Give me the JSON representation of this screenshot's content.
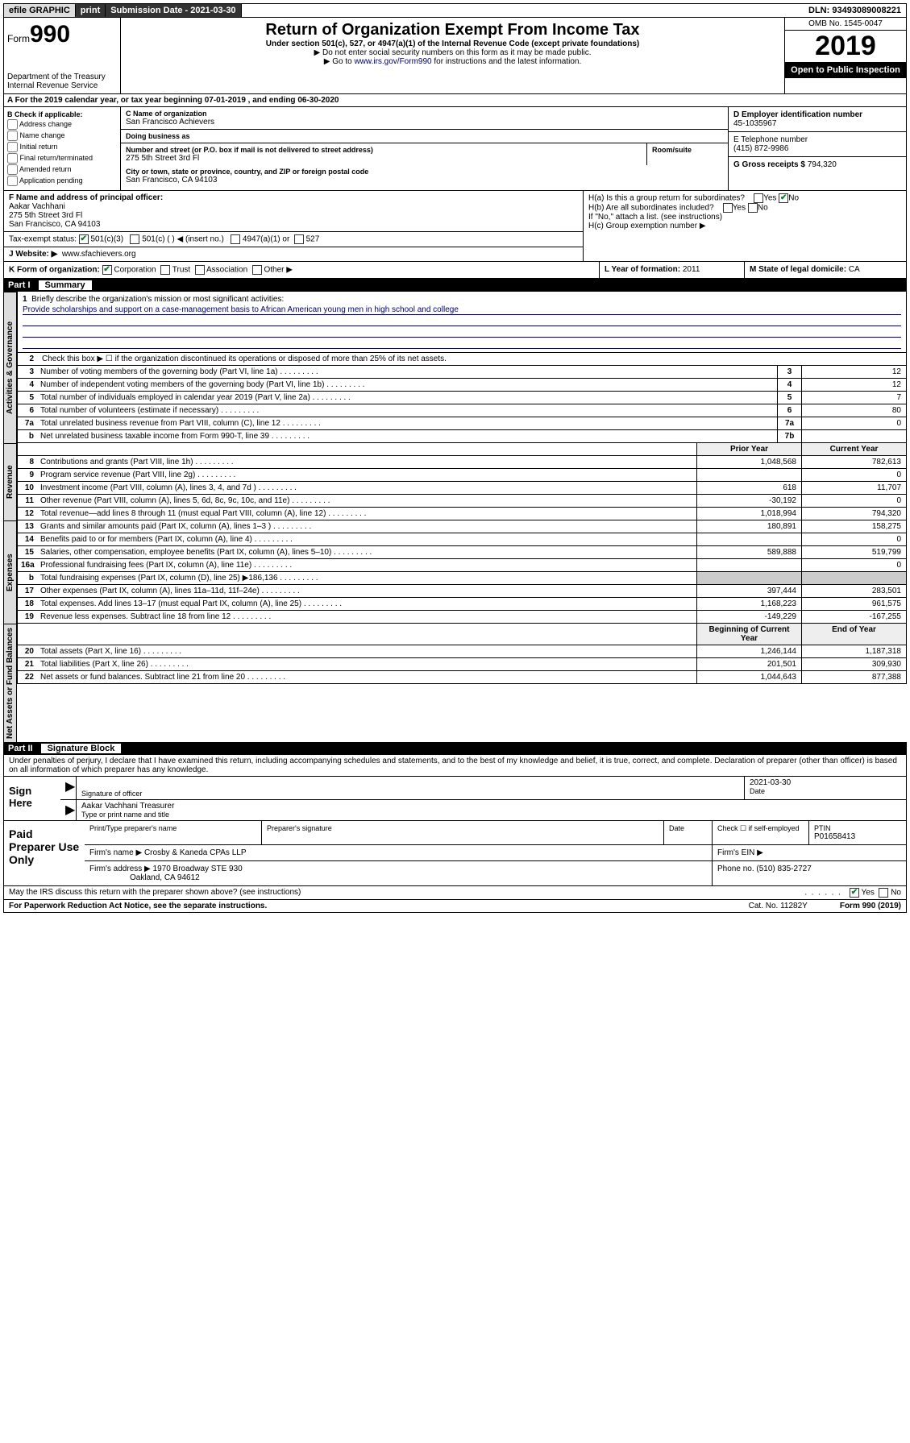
{
  "topbar": {
    "efile": "efile GRAPHIC",
    "print": "print",
    "submission_label": "Submission Date - ",
    "submission_date": "2021-03-30",
    "dln_label": "DLN: ",
    "dln": "93493089008221"
  },
  "header": {
    "form_prefix": "Form",
    "form_number": "990",
    "dept1": "Department of the Treasury",
    "dept2": "Internal Revenue Service",
    "title": "Return of Organization Exempt From Income Tax",
    "subtitle": "Under section 501(c), 527, or 4947(a)(1) of the Internal Revenue Code (except private foundations)",
    "note1": "▶ Do not enter social security numbers on this form as it may be made public.",
    "note2_pre": "▶ Go to ",
    "note2_link": "www.irs.gov/Form990",
    "note2_post": " for instructions and the latest information.",
    "omb": "OMB No. 1545-0047",
    "year": "2019",
    "open_public": "Open to Public Inspection"
  },
  "section_a": {
    "text": "A  For the 2019 calendar year, or tax year beginning 07-01-2019    , and ending 06-30-2020"
  },
  "section_b": {
    "check_label": "B Check if applicable:",
    "opts": [
      "Address change",
      "Name change",
      "Initial return",
      "Final return/terminated",
      "Amended return",
      "Application pending"
    ]
  },
  "section_c": {
    "name_label": "C Name of organization",
    "name": "San Francisco Achievers",
    "dba_label": "Doing business as",
    "dba": "",
    "addr_label": "Number and street (or P.O. box if mail is not delivered to street address)",
    "addr": "275 5th Street 3rd Fl",
    "room_label": "Room/suite",
    "city_label": "City or town, state or province, country, and ZIP or foreign postal code",
    "city": "San Francisco, CA  94103"
  },
  "section_d": {
    "ein_label": "D Employer identification number",
    "ein": "45-1035967",
    "tel_label": "E Telephone number",
    "tel": "(415) 872-9986",
    "gross_label": "G Gross receipts $ ",
    "gross": "794,320"
  },
  "section_f": {
    "label": "F  Name and address of principal officer:",
    "name": "Aakar Vachhani",
    "addr1": "275 5th Street 3rd Fl",
    "addr2": "San Francisco, CA  94103"
  },
  "section_h": {
    "ha_label": "H(a)  Is this a group return for subordinates?",
    "hb_label": "H(b)  Are all subordinates included?",
    "hb_note": "If \"No,\" attach a list. (see instructions)",
    "hc_label": "H(c)  Group exemption number ▶",
    "yes": "Yes",
    "no": "No"
  },
  "tax_status": {
    "label": "Tax-exempt status:",
    "opt1": "501(c)(3)",
    "opt2": "501(c) (  ) ◀ (insert no.)",
    "opt3": "4947(a)(1) or",
    "opt4": "527"
  },
  "website": {
    "label": "J   Website: ▶",
    "value": "www.sfachievers.org"
  },
  "row_k": {
    "k_label": "K Form of organization:",
    "corp": "Corporation",
    "trust": "Trust",
    "assoc": "Association",
    "other": "Other ▶",
    "l_label": "L Year of formation: ",
    "l_val": "2011",
    "m_label": "M State of legal domicile: ",
    "m_val": "CA"
  },
  "part1": {
    "num": "Part I",
    "title": "Summary"
  },
  "mission": {
    "num": "1",
    "label": "Briefly describe the organization's mission or most significant activities:",
    "text": "Provide scholarships and support on a case-management basis to African American young men in high school and college"
  },
  "line2": "Check this box ▶ ☐  if the organization discontinued its operations or disposed of more than 25% of its net assets.",
  "lines_gov": [
    {
      "n": "3",
      "d": "Number of voting members of the governing body (Part VI, line 1a)",
      "box": "3",
      "v": "12"
    },
    {
      "n": "4",
      "d": "Number of independent voting members of the governing body (Part VI, line 1b)",
      "box": "4",
      "v": "12"
    },
    {
      "n": "5",
      "d": "Total number of individuals employed in calendar year 2019 (Part V, line 2a)",
      "box": "5",
      "v": "7"
    },
    {
      "n": "6",
      "d": "Total number of volunteers (estimate if necessary)",
      "box": "6",
      "v": "80"
    },
    {
      "n": "7a",
      "d": "Total unrelated business revenue from Part VIII, column (C), line 12",
      "box": "7a",
      "v": "0"
    },
    {
      "n": "b",
      "d": "Net unrelated business taxable income from Form 990-T, line 39",
      "box": "7b",
      "v": ""
    }
  ],
  "col_hdr": {
    "prior": "Prior Year",
    "current": "Current Year"
  },
  "lines_rev": [
    {
      "n": "8",
      "d": "Contributions and grants (Part VIII, line 1h)",
      "p": "1,048,568",
      "c": "782,613"
    },
    {
      "n": "9",
      "d": "Program service revenue (Part VIII, line 2g)",
      "p": "",
      "c": "0"
    },
    {
      "n": "10",
      "d": "Investment income (Part VIII, column (A), lines 3, 4, and 7d )",
      "p": "618",
      "c": "11,707"
    },
    {
      "n": "11",
      "d": "Other revenue (Part VIII, column (A), lines 5, 6d, 8c, 9c, 10c, and 11e)",
      "p": "-30,192",
      "c": "0"
    },
    {
      "n": "12",
      "d": "Total revenue—add lines 8 through 11 (must equal Part VIII, column (A), line 12)",
      "p": "1,018,994",
      "c": "794,320"
    }
  ],
  "lines_exp": [
    {
      "n": "13",
      "d": "Grants and similar amounts paid (Part IX, column (A), lines 1–3 )",
      "p": "180,891",
      "c": "158,275"
    },
    {
      "n": "14",
      "d": "Benefits paid to or for members (Part IX, column (A), line 4)",
      "p": "",
      "c": "0"
    },
    {
      "n": "15",
      "d": "Salaries, other compensation, employee benefits (Part IX, column (A), lines 5–10)",
      "p": "589,888",
      "c": "519,799"
    },
    {
      "n": "16a",
      "d": "Professional fundraising fees (Part IX, column (A), line 11e)",
      "p": "",
      "c": "0"
    },
    {
      "n": "b",
      "d": "Total fundraising expenses (Part IX, column (D), line 25) ▶186,136",
      "p": "—hide—",
      "c": "—hide—"
    },
    {
      "n": "17",
      "d": "Other expenses (Part IX, column (A), lines 11a–11d, 11f–24e)",
      "p": "397,444",
      "c": "283,501"
    },
    {
      "n": "18",
      "d": "Total expenses. Add lines 13–17 (must equal Part IX, column (A), line 25)",
      "p": "1,168,223",
      "c": "961,575"
    },
    {
      "n": "19",
      "d": "Revenue less expenses. Subtract line 18 from line 12",
      "p": "-149,229",
      "c": "-167,255"
    }
  ],
  "col_hdr2": {
    "prior": "Beginning of Current Year",
    "current": "End of Year"
  },
  "lines_net": [
    {
      "n": "20",
      "d": "Total assets (Part X, line 16)",
      "p": "1,246,144",
      "c": "1,187,318"
    },
    {
      "n": "21",
      "d": "Total liabilities (Part X, line 26)",
      "p": "201,501",
      "c": "309,930"
    },
    {
      "n": "22",
      "d": "Net assets or fund balances. Subtract line 21 from line 20",
      "p": "1,044,643",
      "c": "877,388"
    }
  ],
  "vert_labels": {
    "gov": "Activities & Governance",
    "rev": "Revenue",
    "exp": "Expenses",
    "net": "Net Assets or Fund Balances"
  },
  "part2": {
    "num": "Part II",
    "title": "Signature Block"
  },
  "perjury": "Under penalties of perjury, I declare that I have examined this return, including accompanying schedules and statements, and to the best of my knowledge and belief, it is true, correct, and complete. Declaration of preparer (other than officer) is based on all information of which preparer has any knowledge.",
  "sign": {
    "here": "Sign Here",
    "sig_officer": "Signature of officer",
    "date_label": "Date",
    "date": "2021-03-30",
    "name_title": "Aakar Vachhani Treasurer",
    "type_label": "Type or print name and title"
  },
  "paid": {
    "label": "Paid Preparer Use Only",
    "prep_name_label": "Print/Type preparer's name",
    "prep_sig_label": "Preparer's signature",
    "date_label": "Date",
    "check_self": "Check ☐  if self-employed",
    "ptin_label": "PTIN",
    "ptin": "P01658413",
    "firm_name_label": "Firm's name    ▶",
    "firm_name": "Crosby & Kaneda CPAs LLP",
    "firm_ein_label": "Firm's EIN ▶",
    "firm_addr_label": "Firm's address ▶",
    "firm_addr1": "1970 Broadway STE 930",
    "firm_addr2": "Oakland, CA  94612",
    "phone_label": "Phone no. ",
    "phone": "(510) 835-2727"
  },
  "discuss": {
    "q": "May the IRS discuss this return with the preparer shown above? (see instructions)",
    "yes": "Yes",
    "no": "No"
  },
  "footer": {
    "left": "For Paperwork Reduction Act Notice, see the separate instructions.",
    "mid": "Cat. No. 11282Y",
    "right": "Form 990 (2019)"
  }
}
